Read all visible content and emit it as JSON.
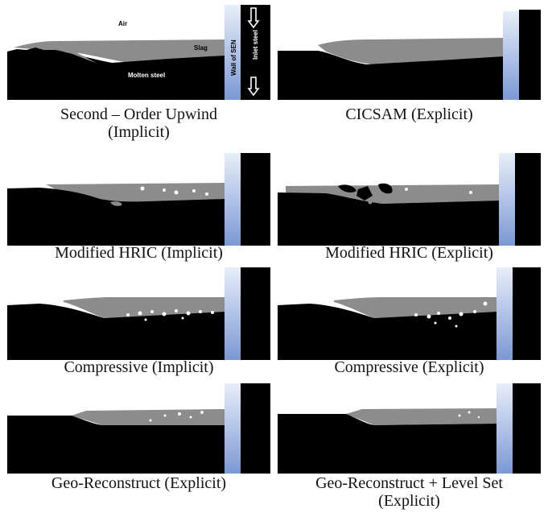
{
  "colors": {
    "air": "#ffffff",
    "slag": "#8c8c8c",
    "steel": "#000000",
    "wall_top": "#e6ecf8",
    "wall_bottom": "#7d9ad6",
    "inlet": "#000000"
  },
  "annotations": {
    "air": "Air",
    "slag": "Slag",
    "molten_steel": "Molten steel",
    "wall_of_sen": "Wall of SEN",
    "inlet_steel": "Inlet steel"
  },
  "panels": [
    {
      "caption_line1": "Second – Order Upwind",
      "caption_line2": "(Implicit)"
    },
    {
      "caption_line1": "CICSAM (Explicit)",
      "caption_line2": ""
    },
    {
      "caption_line1": "Modified HRIC (Implicit)",
      "caption_line2": ""
    },
    {
      "caption_line1": "Modified HRIC (Explicit)",
      "caption_line2": ""
    },
    {
      "caption_line1": "Compressive (Implicit)",
      "caption_line2": ""
    },
    {
      "caption_line1": "Compressive (Explicit)",
      "caption_line2": ""
    },
    {
      "caption_line1": "Geo-Reconstruct (Explicit)",
      "caption_line2": ""
    },
    {
      "caption_line1": "Geo-Reconstruct + Level Set",
      "caption_line2": "(Explicit)"
    }
  ]
}
